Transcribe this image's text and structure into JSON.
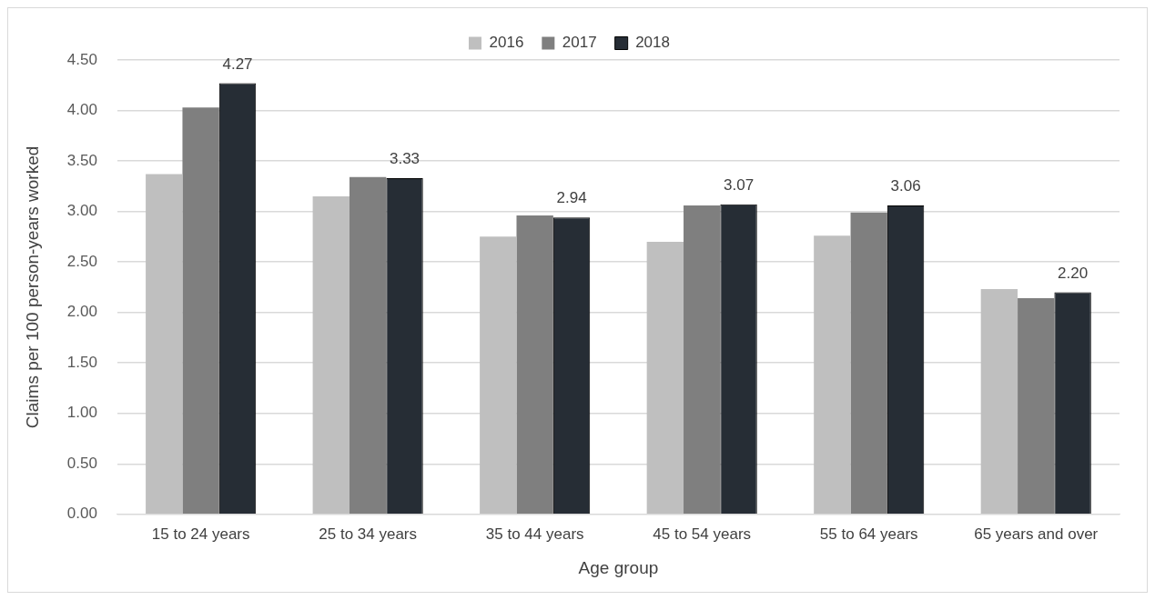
{
  "chart_data": {
    "type": "bar",
    "xlabel": "Age group",
    "ylabel": "Claims per 100 person-years worked",
    "categories": [
      "15 to 24 years",
      "25 to 34 years",
      "35 to 44 years",
      "45 to 54 years",
      "55 to 64 years",
      "65 years and over"
    ],
    "series": [
      {
        "name": "2016",
        "color": "#bfbfbf",
        "values": [
          3.37,
          3.15,
          2.75,
          2.7,
          2.76,
          2.23
        ]
      },
      {
        "name": "2017",
        "color": "#7f7f7f",
        "values": [
          4.03,
          3.34,
          2.96,
          3.06,
          2.99,
          2.14
        ]
      },
      {
        "name": "2018",
        "color": "#262d35",
        "values": [
          4.27,
          3.33,
          2.94,
          3.07,
          3.06,
          2.2
        ],
        "value_labels": [
          "4.27",
          "3.33",
          "2.94",
          "3.07",
          "3.06",
          "2.20"
        ]
      }
    ],
    "ylim": [
      0,
      4.5
    ],
    "yticks": [
      {
        "value": 0,
        "label": "0.00"
      },
      {
        "value": 0.5,
        "label": "0.50"
      },
      {
        "value": 1,
        "label": "1.00"
      },
      {
        "value": 1.5,
        "label": "1.50"
      },
      {
        "value": 2,
        "label": "2.00"
      },
      {
        "value": 2.5,
        "label": "2.50"
      },
      {
        "value": 3,
        "label": "3.00"
      },
      {
        "value": 3.5,
        "label": "3.50"
      },
      {
        "value": 4,
        "label": "4.00"
      },
      {
        "value": 4.5,
        "label": "4.50"
      }
    ],
    "grid": "y",
    "legend": "top"
  }
}
